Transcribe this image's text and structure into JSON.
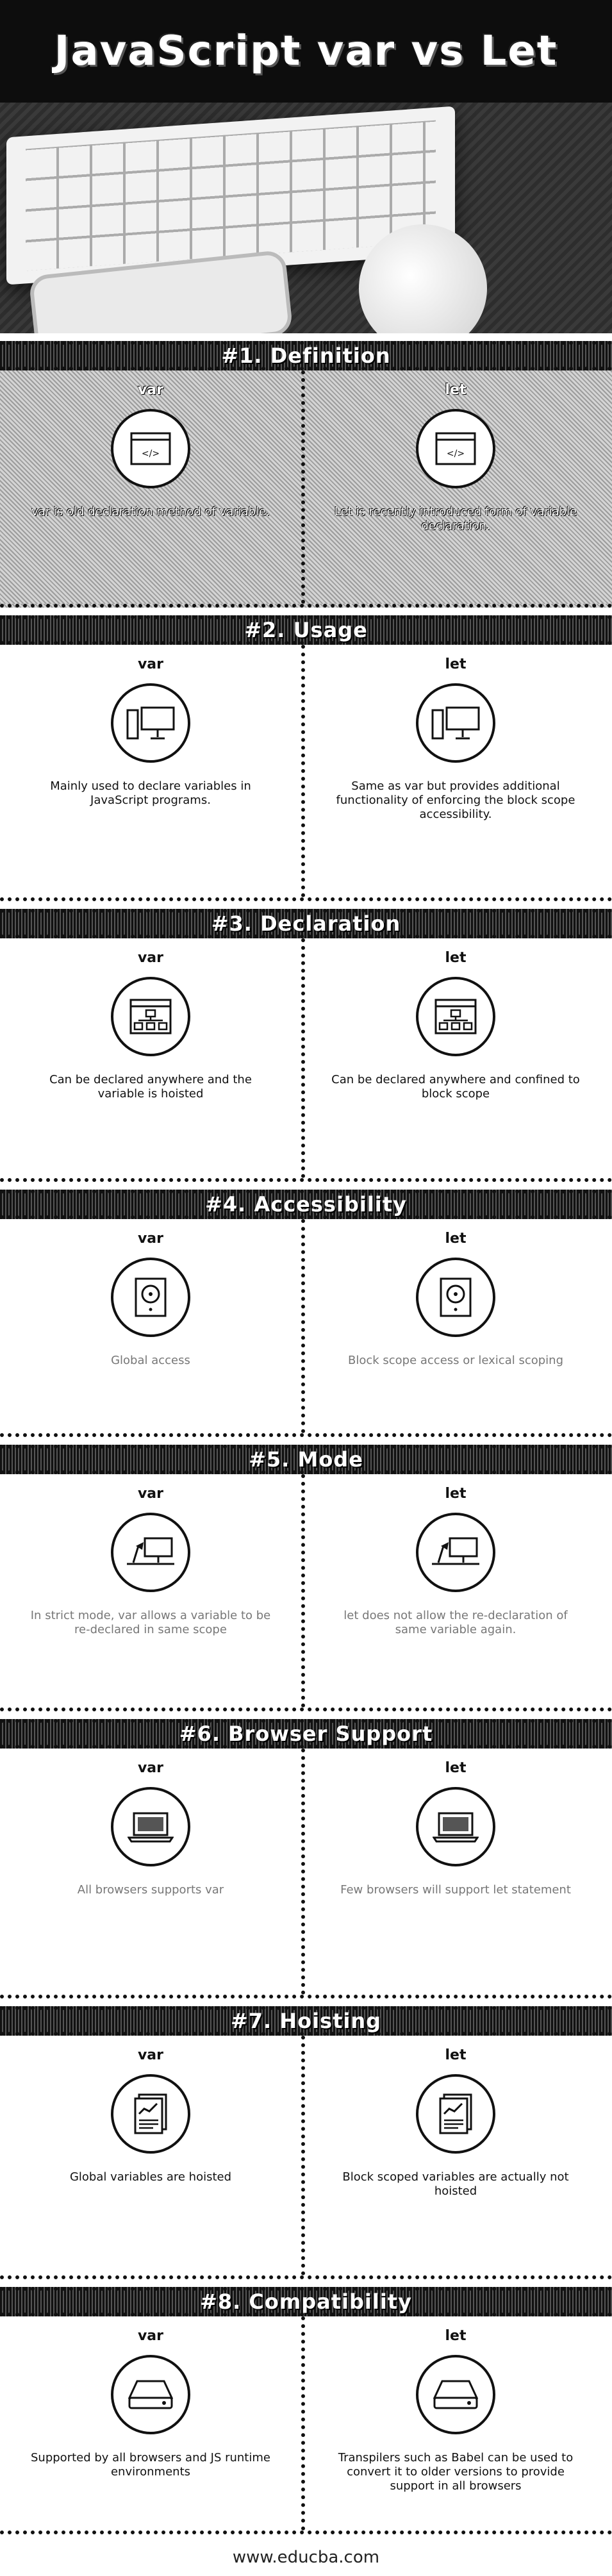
{
  "title": "JavaScript var vs Let",
  "sections": [
    {
      "heading": "#1. Definition",
      "left_label": "var",
      "right_label": "let",
      "left_text": "var is old declaration method of variable.",
      "right_text": "Let is recently introduced form of variable declaration.",
      "icon": "code-window-icon"
    },
    {
      "heading": "#2. Usage",
      "left_label": "var",
      "right_label": "let",
      "left_text": "Mainly used to declare variables in JavaScript programs.",
      "right_text": "Same as var but provides additional functionality of enforcing the block scope accessibility.",
      "icon": "desktop-computer-icon"
    },
    {
      "heading": "#3. Declaration",
      "left_label": "var",
      "right_label": "let",
      "left_text": "Can be declared anywhere and the variable is hoisted",
      "right_text": "Can be declared anywhere and confined to block scope",
      "icon": "sitemap-window-icon"
    },
    {
      "heading": "#4. Accessibility",
      "left_label": "var",
      "right_label": "let",
      "left_text": "Global access",
      "right_text": "Block scope access or lexical scoping",
      "icon": "disk-drive-icon"
    },
    {
      "heading": "#5. Mode",
      "left_label": "var",
      "right_label": "let",
      "left_text": "In strict mode, var allows a variable to be re-declared in same scope",
      "right_text": "let does not allow the re-declaration of same variable again.",
      "icon": "desk-computer-icon"
    },
    {
      "heading": "#6. Browser Support",
      "left_label": "var",
      "right_label": "let",
      "left_text": "All browsers supports var",
      "right_text": "Few browsers will support let statement",
      "icon": "laptop-icon"
    },
    {
      "heading": "#7. Hoisting",
      "left_label": "var",
      "right_label": "let",
      "left_text": "Global variables are hoisted",
      "right_text": "Block scoped variables are actually not hoisted",
      "icon": "document-chart-icon"
    },
    {
      "heading": "#8. Compatibility",
      "left_label": "var",
      "right_label": "let",
      "left_text": "Supported by all browsers and JS runtime environments",
      "right_text": "Transpilers such as Babel can be used to convert it to older versions to provide support in all browsers",
      "icon": "hard-drive-icon"
    }
  ],
  "footer": "www.educba.com"
}
